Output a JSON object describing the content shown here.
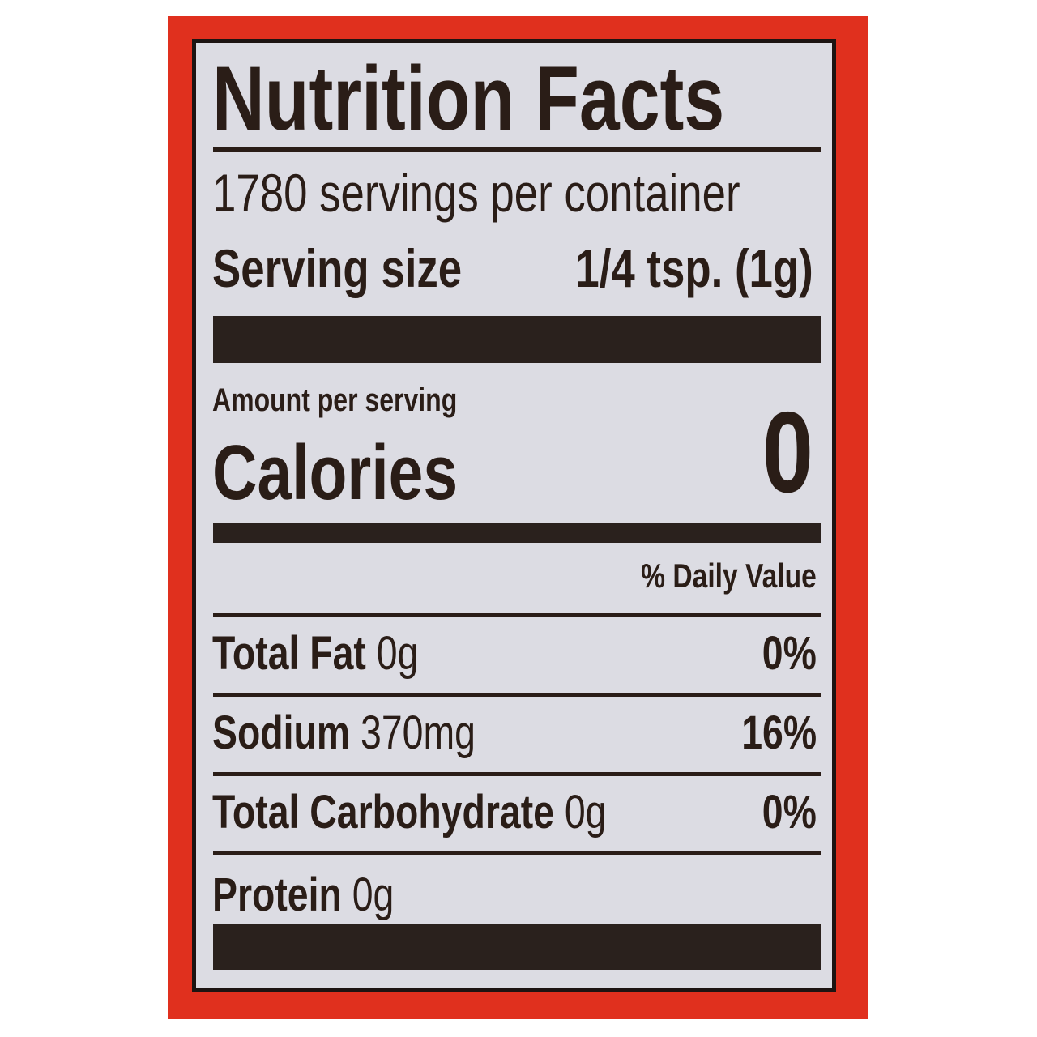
{
  "title": "Nutrition Facts",
  "servings_per_container": "1780 servings per container",
  "serving_size": {
    "label": "Serving size",
    "value": "1/4 tsp. (1g)"
  },
  "amount_per_serving": "Amount per serving",
  "calories": {
    "label": "Calories",
    "value": "0"
  },
  "daily_value_header": "% Daily Value",
  "nutrients": [
    {
      "name": "Total Fat",
      "amount": "0g",
      "dv": "0%"
    },
    {
      "name": "Sodium",
      "amount": "370mg",
      "dv": "16%"
    },
    {
      "name": "Total Carbohydrate",
      "amount": "0g",
      "dv": "0%"
    },
    {
      "name": "Protein",
      "amount": "0g",
      "dv": ""
    }
  ],
  "colors": {
    "packaging_red": "#e0301e",
    "label_background": "#dcdce3",
    "ink": "#2a1d17"
  }
}
